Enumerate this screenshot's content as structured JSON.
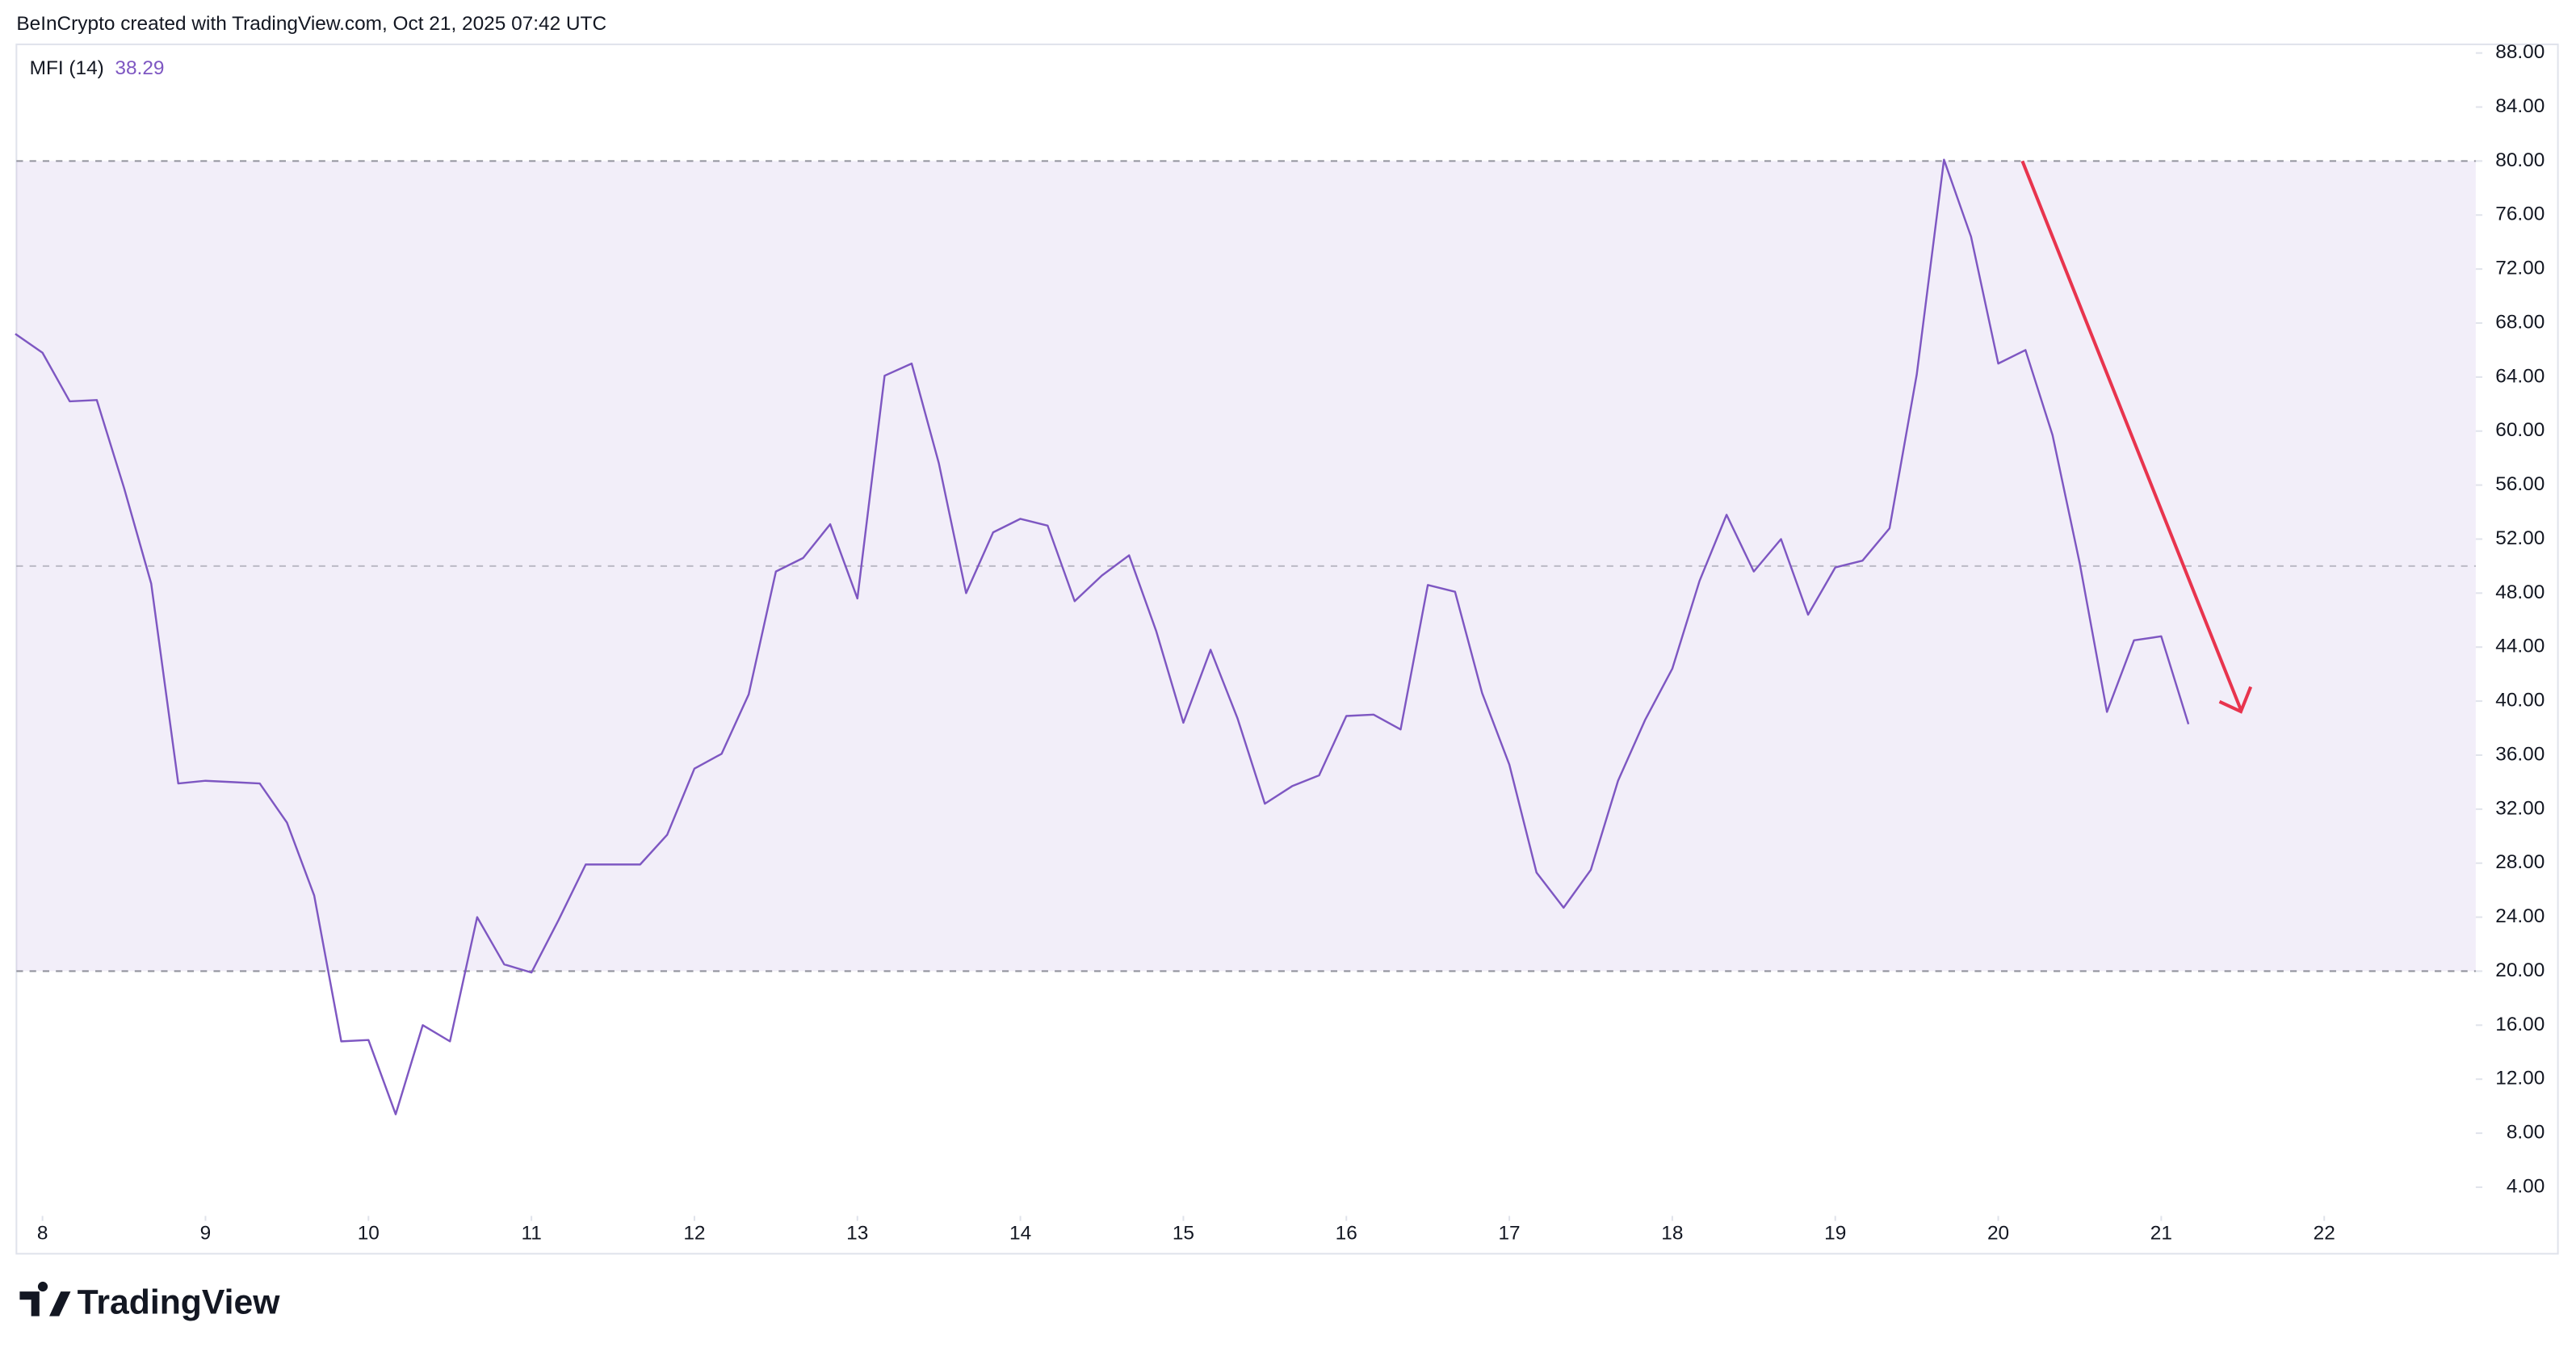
{
  "header": "BeInCrypto created with TradingView.com, Oct 21, 2025 07:42 UTC",
  "footer": "TradingView",
  "chart_data": {
    "type": "line",
    "x": [
      7.833,
      8,
      8.167,
      8.333,
      8.5,
      8.667,
      8.833,
      9,
      9.167,
      9.333,
      9.5,
      9.667,
      9.833,
      10,
      10.167,
      10.333,
      10.5,
      10.667,
      10.833,
      11,
      11.167,
      11.333,
      11.5,
      11.667,
      11.833,
      12,
      12.167,
      12.333,
      12.5,
      12.667,
      12.833,
      13,
      13.167,
      13.333,
      13.5,
      13.667,
      13.833,
      14,
      14.167,
      14.333,
      14.5,
      14.667,
      14.833,
      15,
      15.167,
      15.333,
      15.5,
      15.667,
      15.833,
      16,
      16.167,
      16.333,
      16.5,
      16.667,
      16.833,
      17,
      17.167,
      17.333,
      17.5,
      17.667,
      17.833,
      18,
      18.167,
      18.333,
      18.5,
      18.667,
      18.833,
      19,
      19.167,
      19.333,
      19.5,
      19.667,
      19.833,
      20,
      20.167,
      20.333,
      20.5,
      20.667,
      20.833,
      21,
      21.167
    ],
    "series": [
      {
        "name": "MFI (14)",
        "color": "#7e57c2",
        "values": [
          67.2,
          65.8,
          62.2,
          62.3,
          55.8,
          48.7,
          33.9,
          34.1,
          34.0,
          33.9,
          31.0,
          25.6,
          14.8,
          14.9,
          9.4,
          16.0,
          14.8,
          24.0,
          20.5,
          19.9,
          23.8,
          27.9,
          27.9,
          27.9,
          30.1,
          35.0,
          36.1,
          40.5,
          49.6,
          50.6,
          53.1,
          47.6,
          64.1,
          65.0,
          57.6,
          48.0,
          52.5,
          53.5,
          53.0,
          47.4,
          49.3,
          50.8,
          45.2,
          38.4,
          43.8,
          38.7,
          32.4,
          33.7,
          34.5,
          38.9,
          39.0,
          37.9,
          48.6,
          48.1,
          40.6,
          35.3,
          27.3,
          24.7,
          27.5,
          34.1,
          38.6,
          42.4,
          48.9,
          53.8,
          49.6,
          52.0,
          46.4,
          49.9,
          50.4,
          52.8,
          64.2,
          80.1,
          74.4,
          65.0,
          66.0,
          59.7,
          50.2,
          39.2,
          44.5,
          44.8,
          38.29
        ]
      }
    ],
    "bands": {
      "upper": 80,
      "middle": 50,
      "lower": 20
    },
    "xlim": [
      7.84,
      22.93
    ],
    "xticks": [
      8,
      9,
      10,
      11,
      12,
      13,
      14,
      15,
      16,
      17,
      18,
      19,
      20,
      21,
      22
    ],
    "ylim": [
      1.87,
      88.64
    ],
    "yticks": [
      {
        "value": 4,
        "label": "4.00"
      },
      {
        "value": 8,
        "label": "8.00"
      },
      {
        "value": 12,
        "label": "12.00"
      },
      {
        "value": 16,
        "label": "16.00"
      },
      {
        "value": 20,
        "label": "20.00"
      },
      {
        "value": 24,
        "label": "24.00"
      },
      {
        "value": 28,
        "label": "28.00"
      },
      {
        "value": 32,
        "label": "32.00"
      },
      {
        "value": 36,
        "label": "36.00"
      },
      {
        "value": 40,
        "label": "40.00"
      },
      {
        "value": 44,
        "label": "44.00"
      },
      {
        "value": 48,
        "label": "48.00"
      },
      {
        "value": 52,
        "label": "52.00"
      },
      {
        "value": 56,
        "label": "56.00"
      },
      {
        "value": 60,
        "label": "60.00"
      },
      {
        "value": 64,
        "label": "64.00"
      },
      {
        "value": 68,
        "label": "68.00"
      },
      {
        "value": 72,
        "label": "72.00"
      },
      {
        "value": 76,
        "label": "76.00"
      },
      {
        "value": 80,
        "label": "80.00"
      },
      {
        "value": 84,
        "label": "84.00"
      },
      {
        "value": 88,
        "label": "88.00"
      }
    ]
  }
}
